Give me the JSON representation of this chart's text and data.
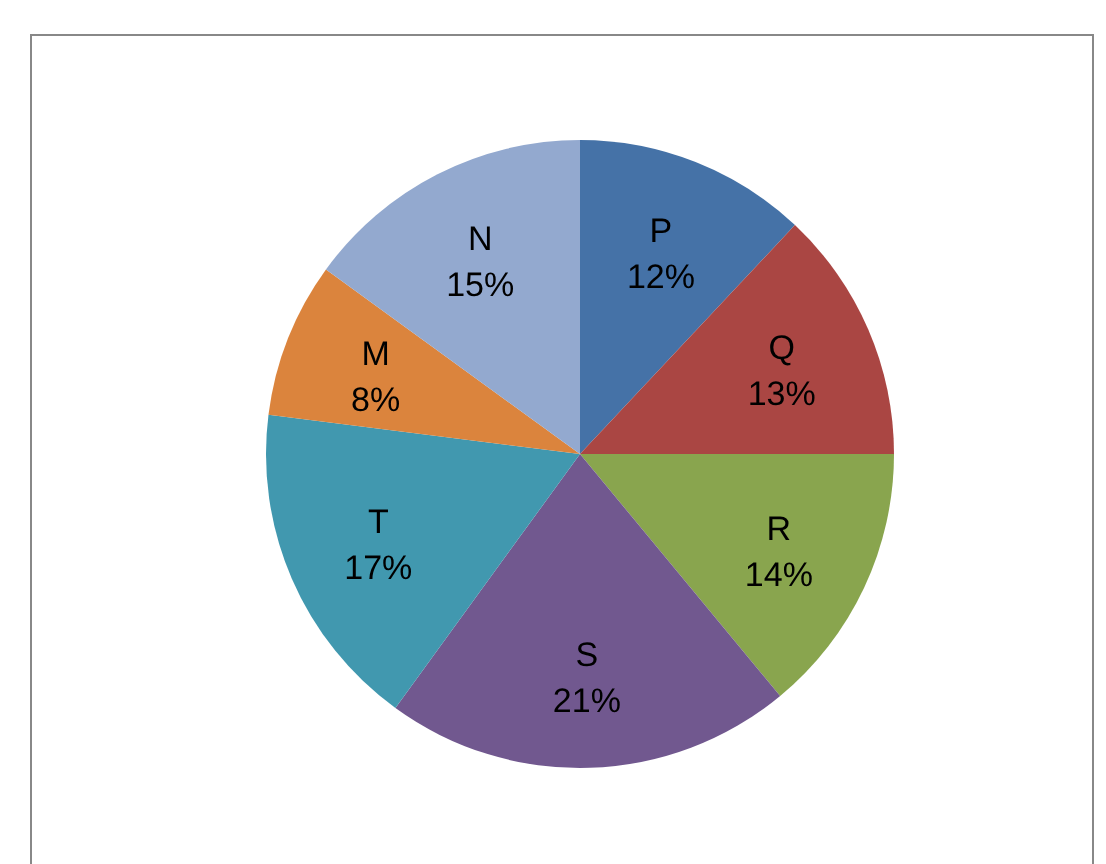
{
  "chart_data": {
    "type": "pie",
    "categories": [
      "P",
      "Q",
      "R",
      "S",
      "T",
      "M",
      "N"
    ],
    "values": [
      12,
      13,
      14,
      21,
      17,
      8,
      15
    ],
    "value_labels": [
      "12%",
      "13%",
      "14%",
      "21%",
      "17%",
      "8%",
      "15%"
    ],
    "colors": [
      "#4572a7",
      "#aa4643",
      "#89a54e",
      "#71588f",
      "#4198af",
      "#db843d",
      "#93a9cf"
    ]
  }
}
